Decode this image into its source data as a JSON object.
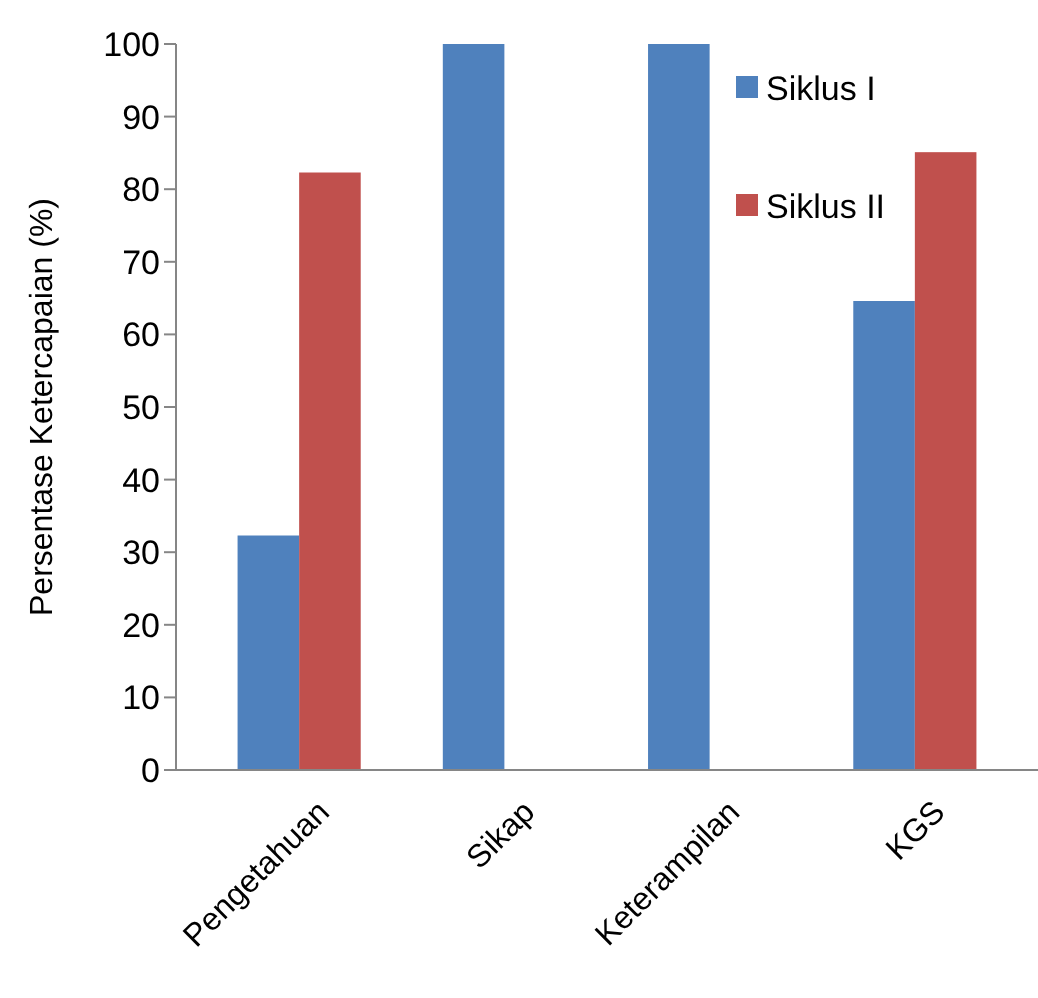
{
  "chart_data": {
    "type": "bar",
    "ylabel": "Persentase Ketercapaian (%)",
    "categories": [
      "Pengetahuan",
      "Sikap",
      "Keterampilan",
      "KGS"
    ],
    "series": [
      {
        "name": "Siklus I",
        "color": "#4f81bd",
        "values": [
          32.3,
          100,
          100,
          64.6
        ]
      },
      {
        "name": "Siklus II",
        "color": "#c0504d",
        "values": [
          82.3,
          null,
          null,
          85.1
        ]
      }
    ],
    "ylim": [
      0,
      100
    ],
    "yticks": [
      0,
      10,
      20,
      30,
      40,
      50,
      60,
      70,
      80,
      90,
      100
    ],
    "legend": "top right"
  }
}
